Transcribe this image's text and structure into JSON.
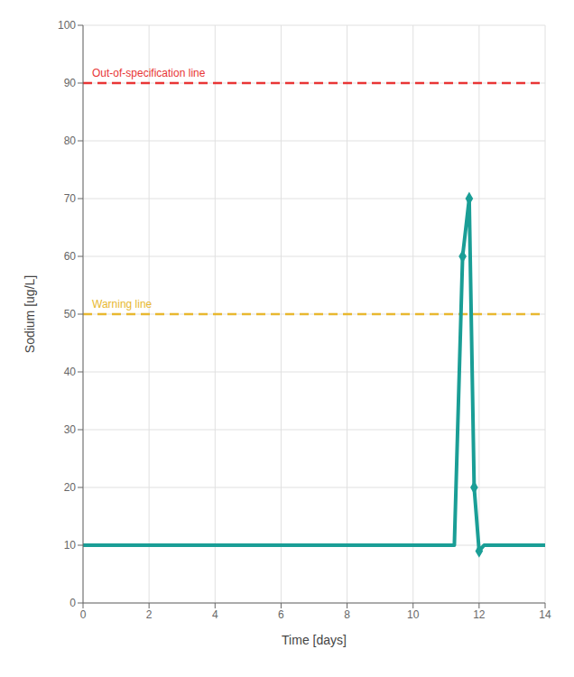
{
  "chart_data": {
    "type": "line",
    "xlabel": "Time [days]",
    "ylabel": "Sodium [ug/L]",
    "series": [
      {
        "type": "line",
        "marker": "none",
        "color": "#1a9e96",
        "x": [
          0,
          0.25,
          0.5,
          0.75,
          1,
          1.25,
          1.5,
          1.75,
          2,
          2.25,
          2.5,
          2.75,
          3,
          3.25,
          3.5,
          3.75,
          4,
          4.25,
          4.5,
          4.75,
          5,
          5.25,
          5.5,
          5.75,
          6,
          6.25,
          6.5,
          6.75,
          7,
          7.25,
          7.5,
          7.75,
          8,
          8.25,
          8.5,
          8.75,
          9,
          9.25,
          9.5,
          9.75,
          10,
          10.25,
          10.5,
          10.75,
          11,
          11.25,
          11.5,
          11.7,
          11.85,
          12.0,
          12.15,
          12.3,
          12.5,
          12.75,
          13,
          13.25,
          13.5,
          13.75,
          14
        ],
        "values": [
          10,
          10,
          10,
          10,
          10,
          10,
          10,
          10,
          10,
          10,
          10,
          10,
          10,
          10,
          10,
          10,
          10,
          10,
          10,
          10,
          10,
          10,
          10,
          10,
          10,
          10,
          10,
          10,
          10,
          10,
          10,
          10,
          10,
          10,
          10,
          10,
          10,
          10,
          10,
          10,
          10,
          10,
          10,
          10,
          10,
          10,
          60,
          70,
          20,
          9,
          10,
          10,
          10,
          10,
          10,
          10,
          10,
          10,
          10
        ]
      },
      {
        "type": "scatter",
        "marker": "diamond",
        "color": "#1a9e96",
        "x": [
          11.5,
          11.7,
          11.85,
          12.0
        ],
        "values": [
          60,
          70,
          20,
          9
        ]
      }
    ],
    "annotations": [
      {
        "type": "hline",
        "y": 90,
        "label": "Out-of-specification line",
        "color": "#e83535",
        "line_style": "dashed"
      },
      {
        "type": "hline",
        "y": 50,
        "label": "Warning line",
        "color": "#e8b830",
        "line_style": "dashed"
      }
    ],
    "xlim": [
      0,
      14
    ],
    "ylim": [
      0,
      100
    ],
    "xticks": [
      0,
      2,
      4,
      6,
      8,
      10,
      12,
      14
    ],
    "yticks": [
      0,
      10,
      20,
      30,
      40,
      50,
      60,
      70,
      80,
      90,
      100
    ],
    "grid": true
  }
}
